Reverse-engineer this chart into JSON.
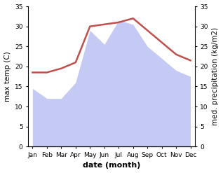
{
  "months": [
    "Jan",
    "Feb",
    "Mar",
    "Apr",
    "May",
    "Jun",
    "Jul",
    "Aug",
    "Sep",
    "Oct",
    "Nov",
    "Dec"
  ],
  "month_indices": [
    1,
    2,
    3,
    4,
    5,
    6,
    7,
    8,
    9,
    10,
    11,
    12
  ],
  "temperature": [
    18.5,
    18.5,
    19.5,
    21,
    30,
    30.5,
    31,
    32,
    29,
    26,
    23,
    21.5
  ],
  "precipitation": [
    14.5,
    12,
    12,
    16,
    29,
    25.5,
    31.5,
    30.5,
    25,
    22,
    19,
    17.5
  ],
  "temp_color": "#c0504d",
  "precip_fill_color": "#c5caf5",
  "precip_edge_color": "#b0b8f0",
  "background_color": "#ffffff",
  "ylim": [
    0,
    35
  ],
  "xlabel": "date (month)",
  "ylabel_left": "max temp (C)",
  "ylabel_right": "med. precipitation (kg/m2)",
  "temp_linewidth": 1.8,
  "label_fontsize": 7.5,
  "tick_fontsize": 6.5,
  "xlabel_fontsize": 8,
  "xlabel_fontweight": "bold"
}
